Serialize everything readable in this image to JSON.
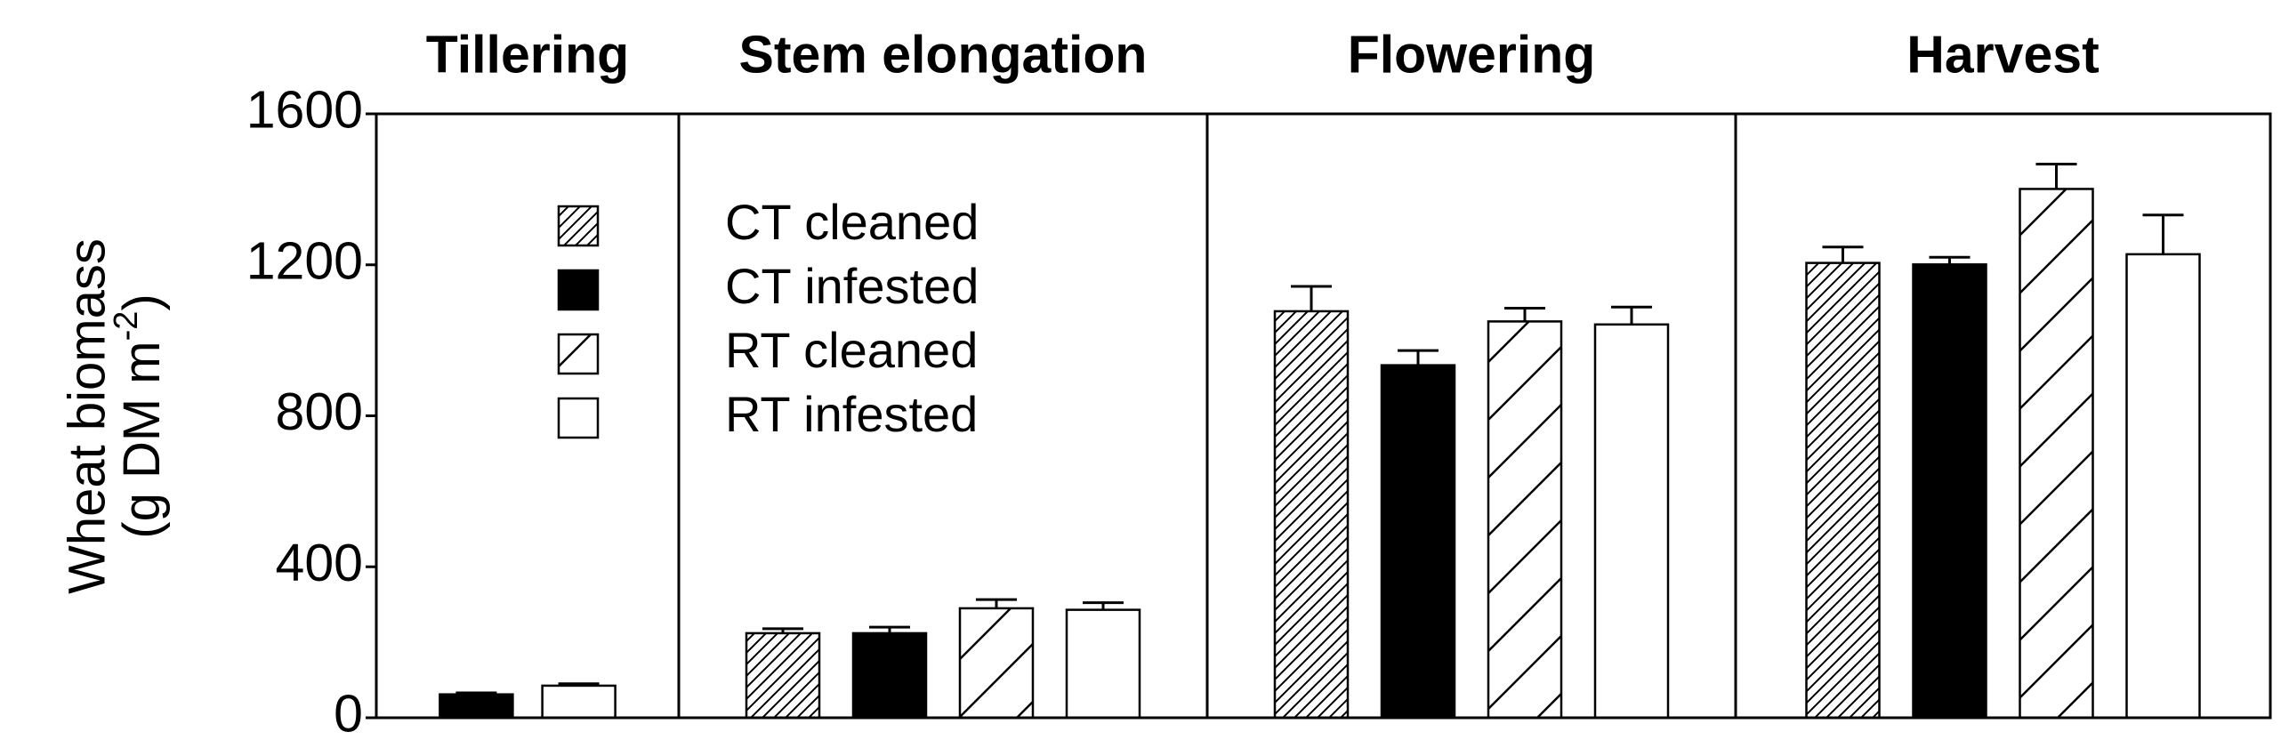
{
  "chart_data": {
    "type": "bar",
    "categories": [
      "Tillering",
      "Stem elongation",
      "Flowering",
      "Harvest"
    ],
    "series": [
      {
        "name": "CT cleaned",
        "color": "#000000",
        "fill": "#ffffff",
        "hatch": "dense",
        "values": [
          null,
          224,
          1077,
          1205
        ],
        "errors": [
          null,
          12,
          66,
          42
        ]
      },
      {
        "name": "CT infested",
        "color": "#000000",
        "fill": "#000000",
        "hatch": "none",
        "values": [
          62,
          224,
          934,
          1201
        ],
        "errors": [
          4,
          16,
          39,
          19
        ]
      },
      {
        "name": "RT cleaned",
        "color": "#000000",
        "fill": "#ffffff",
        "hatch": "sparse",
        "values": [
          null,
          290,
          1050,
          1401
        ],
        "errors": [
          null,
          23,
          35,
          66
        ]
      },
      {
        "name": "RT infested",
        "color": "#000000",
        "fill": "#ffffff",
        "hatch": "none",
        "values": [
          85,
          286,
          1042,
          1228
        ],
        "errors": [
          5,
          19,
          46,
          104
        ]
      }
    ],
    "ylabel": "Wheat biomass",
    "ylabel_unit": "(g DM m",
    "ylabel_unit_sup": "-2",
    "ylabel_unit_end": ")",
    "ylim": [
      0,
      1600
    ],
    "yticks": [
      0,
      400,
      800,
      1200,
      1600
    ]
  }
}
